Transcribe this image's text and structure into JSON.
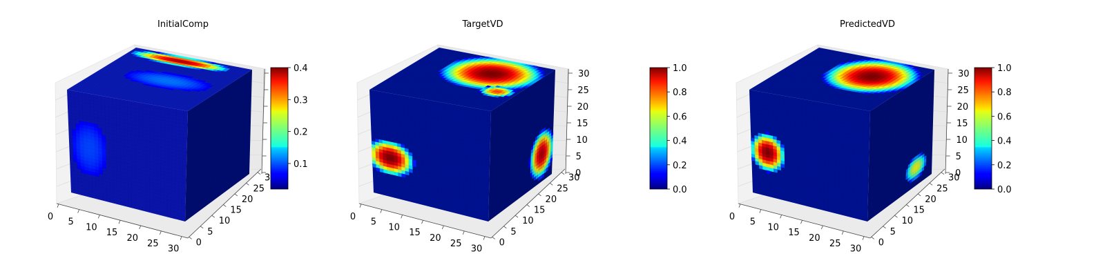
{
  "chart_data": [
    {
      "type": "3d-voxel",
      "title": "InitialComp",
      "x_ticks": [
        "0",
        "5",
        "10",
        "15",
        "20",
        "25",
        "30"
      ],
      "y_ticks": [
        "0",
        "5",
        "10",
        "15",
        "20",
        "25",
        "30"
      ],
      "z_ticks": [],
      "colormap": "jet",
      "colorbar": {
        "ticks": [
          "0.1",
          "0.2",
          "0.3",
          "0.4"
        ],
        "range": [
          0.02,
          0.4
        ]
      },
      "grid": true,
      "blobs": [
        {
          "face": "top",
          "u": [
            27,
            31
          ],
          "v": [
            3,
            25
          ],
          "value": 0.38
        },
        {
          "face": "top",
          "u": [
            12,
            20
          ],
          "v": [
            8,
            28
          ],
          "value": 0.08
        },
        {
          "face": "front",
          "u": [
            1,
            10
          ],
          "v": [
            9,
            25
          ],
          "value": 0.06
        }
      ]
    },
    {
      "type": "3d-voxel",
      "title": "TargetVD",
      "x_ticks": [
        "0",
        "5",
        "10",
        "15",
        "20",
        "25",
        "30"
      ],
      "y_ticks": [
        "0",
        "5",
        "10",
        "15",
        "20",
        "25",
        "30"
      ],
      "z_ticks": [
        "0",
        "5",
        "10",
        "15",
        "20",
        "25",
        "30"
      ],
      "colormap": "jet",
      "colorbar": {
        "ticks": [
          "0.0",
          "0.2",
          "0.4",
          "0.6",
          "0.8",
          "1.0"
        ],
        "range": [
          0,
          1
        ]
      },
      "grid": true,
      "blobs": [
        {
          "face": "top",
          "u": [
            14,
            31
          ],
          "v": [
            10,
            30
          ],
          "value": 1.0
        },
        {
          "face": "top",
          "u": [
            10,
            15
          ],
          "v": [
            24,
            30
          ],
          "value": 0.8
        },
        {
          "face": "right",
          "u": [
            22,
            31
          ],
          "v": [
            18,
            29
          ],
          "value": 0.95
        },
        {
          "face": "front",
          "u": [
            0,
            10
          ],
          "v": [
            16,
            24
          ],
          "value": 1.0
        }
      ]
    },
    {
      "type": "3d-voxel",
      "title": "PredictedVD",
      "x_ticks": [
        "0",
        "5",
        "10",
        "15",
        "20",
        "25",
        "30"
      ],
      "y_ticks": [
        "0",
        "5",
        "10",
        "15",
        "20",
        "25",
        "30"
      ],
      "z_ticks": [
        "0",
        "5",
        "10",
        "15",
        "20",
        "25",
        "30"
      ],
      "colormap": "jet",
      "colorbar": {
        "ticks": [
          "0.0",
          "0.2",
          "0.4",
          "0.6",
          "0.8",
          "1.0"
        ],
        "range": [
          0,
          1
        ]
      },
      "grid": true,
      "blobs": [
        {
          "face": "top",
          "u": [
            12,
            30
          ],
          "v": [
            12,
            30
          ],
          "value": 1.0
        },
        {
          "face": "right",
          "u": [
            20,
            28
          ],
          "v": [
            24,
            29
          ],
          "value": 0.6
        },
        {
          "face": "front",
          "u": [
            1,
            8
          ],
          "v": [
            14,
            23
          ],
          "value": 1.0
        }
      ]
    }
  ]
}
